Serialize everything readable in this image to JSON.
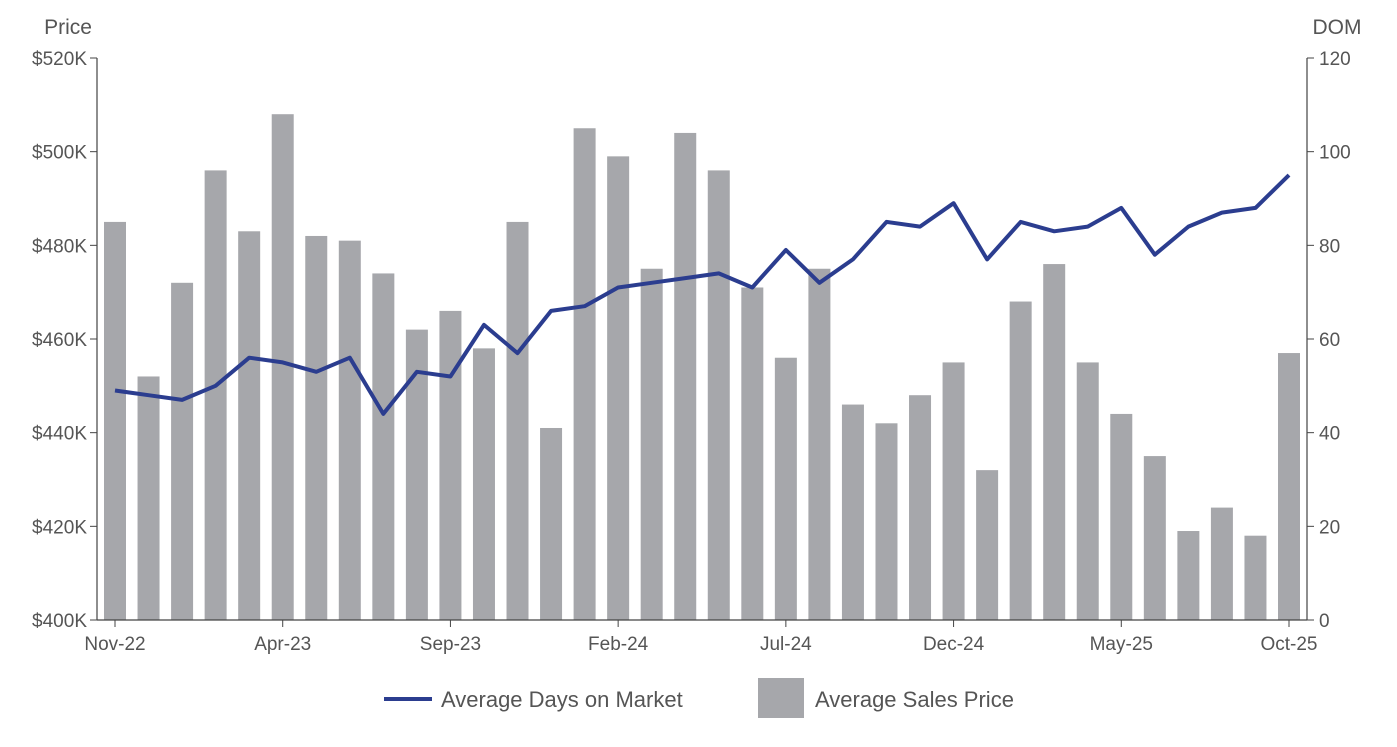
{
  "chart_data": {
    "type": "bar+line",
    "categories": [
      "Nov-22",
      "Dec-22",
      "Jan-23",
      "Feb-23",
      "Mar-23",
      "Apr-23",
      "May-23",
      "Jun-23",
      "Jul-23",
      "Aug-23",
      "Sep-23",
      "Oct-23",
      "Nov-23",
      "Dec-23",
      "Jan-24",
      "Feb-24",
      "Mar-24",
      "Apr-24",
      "May-24",
      "Jun-24",
      "Jul-24",
      "Aug-24",
      "Sep-24",
      "Oct-24",
      "Nov-24",
      "Dec-24",
      "Jan-25",
      "Feb-25",
      "Mar-25",
      "Apr-25",
      "May-25",
      "Jun-25",
      "Jul-25",
      "Aug-25",
      "Sep-25",
      "Oct-25"
    ],
    "x_tick_labels": [
      "Nov-22",
      "Apr-23",
      "Sep-23",
      "Feb-24",
      "Jul-24",
      "Dec-24",
      "May-25",
      "Oct-25"
    ],
    "series": [
      {
        "name": "Average Sales Price",
        "type": "bar",
        "axis": "left",
        "color": "#a6a7ab",
        "values": [
          485,
          452,
          472,
          496,
          483,
          508,
          482,
          481,
          474,
          462,
          466,
          458,
          485,
          441,
          505,
          499,
          475,
          504,
          496,
          471,
          456,
          475,
          446,
          442,
          448,
          455,
          432,
          468,
          476,
          455,
          444,
          435,
          419,
          424,
          418,
          457
        ]
      },
      {
        "name": "Average Days on Market",
        "type": "line",
        "axis": "right",
        "color": "#2b3d8f",
        "values": [
          49,
          48,
          47,
          50,
          56,
          55,
          53,
          56,
          44,
          53,
          52,
          63,
          57,
          66,
          67,
          71,
          72,
          73,
          74,
          71,
          79,
          72,
          77,
          85,
          84,
          89,
          77,
          85,
          83,
          84,
          88,
          78,
          84,
          87,
          88,
          95
        ]
      }
    ],
    "left_axis": {
      "title": "Price",
      "ylim": [
        400,
        520
      ],
      "ticks": [
        "$400K",
        "$420K",
        "$440K",
        "$460K",
        "$480K",
        "$500K",
        "$520K"
      ]
    },
    "right_axis": {
      "title": "DOM",
      "ylim": [
        0,
        120
      ],
      "ticks": [
        "0",
        "20",
        "40",
        "60",
        "80",
        "100",
        "120"
      ]
    },
    "grid": false,
    "legend_position": "bottom"
  }
}
